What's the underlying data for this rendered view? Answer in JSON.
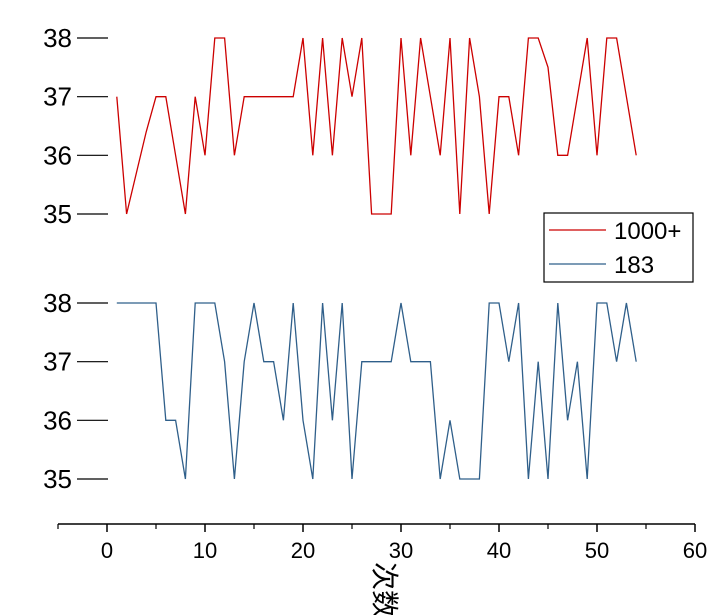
{
  "chart_data": {
    "type": "line",
    "xlabel": "次数",
    "xlim": [
      -5,
      60
    ],
    "xticks": [
      0,
      10,
      20,
      30,
      40,
      50,
      60
    ],
    "grid": false,
    "legend_position": "right",
    "series": [
      {
        "name": "1000+",
        "color": "#cc0000",
        "ylim": [
          34.6,
          38.3
        ],
        "yticks": [
          35,
          36,
          37,
          38
        ],
        "x": [
          1,
          2,
          3,
          4,
          5,
          6,
          7,
          8,
          9,
          10,
          11,
          12,
          13,
          14,
          15,
          16,
          17,
          18,
          19,
          20,
          21,
          22,
          23,
          24,
          25,
          26,
          27,
          28,
          29,
          30,
          31,
          32,
          33,
          34,
          35,
          36,
          37,
          38,
          39,
          40,
          41,
          42,
          43,
          44,
          45,
          46,
          47,
          48,
          49,
          50,
          51,
          52,
          53,
          54
        ],
        "values": [
          37,
          35,
          35.7,
          36.4,
          37,
          37,
          36,
          35,
          37,
          36,
          38,
          38,
          36,
          37,
          37,
          37,
          37,
          37,
          37,
          38,
          36,
          38,
          36,
          38,
          37,
          38,
          35,
          35,
          35,
          38,
          36,
          38,
          37,
          36,
          38,
          35,
          38,
          37,
          35,
          37,
          37,
          36,
          38,
          38,
          37.5,
          36,
          36,
          37,
          38,
          36,
          38,
          38,
          37,
          36
        ]
      },
      {
        "name": "183",
        "color": "#2f5f8a",
        "ylim": [
          34.6,
          38.3
        ],
        "yticks": [
          35,
          36,
          37,
          38
        ],
        "x": [
          1,
          2,
          3,
          4,
          5,
          6,
          7,
          8,
          9,
          10,
          11,
          12,
          13,
          14,
          15,
          16,
          17,
          18,
          19,
          20,
          21,
          22,
          23,
          24,
          25,
          26,
          27,
          28,
          29,
          30,
          31,
          32,
          33,
          34,
          35,
          36,
          37,
          38,
          39,
          40,
          41,
          42,
          43,
          44,
          45,
          46,
          47,
          48,
          49,
          50,
          51,
          52,
          53,
          54
        ],
        "values": [
          38,
          38,
          38,
          38,
          38,
          36,
          36,
          35,
          38,
          38,
          38,
          37,
          35,
          37,
          38,
          37,
          37,
          36,
          38,
          36,
          35,
          38,
          36,
          38,
          35,
          37,
          37,
          37,
          37,
          38,
          37,
          37,
          37,
          35,
          36,
          35,
          35,
          35,
          38,
          38,
          37,
          38,
          35,
          37,
          35,
          38,
          36,
          37,
          35,
          38,
          38,
          37,
          38,
          37
        ]
      }
    ]
  }
}
